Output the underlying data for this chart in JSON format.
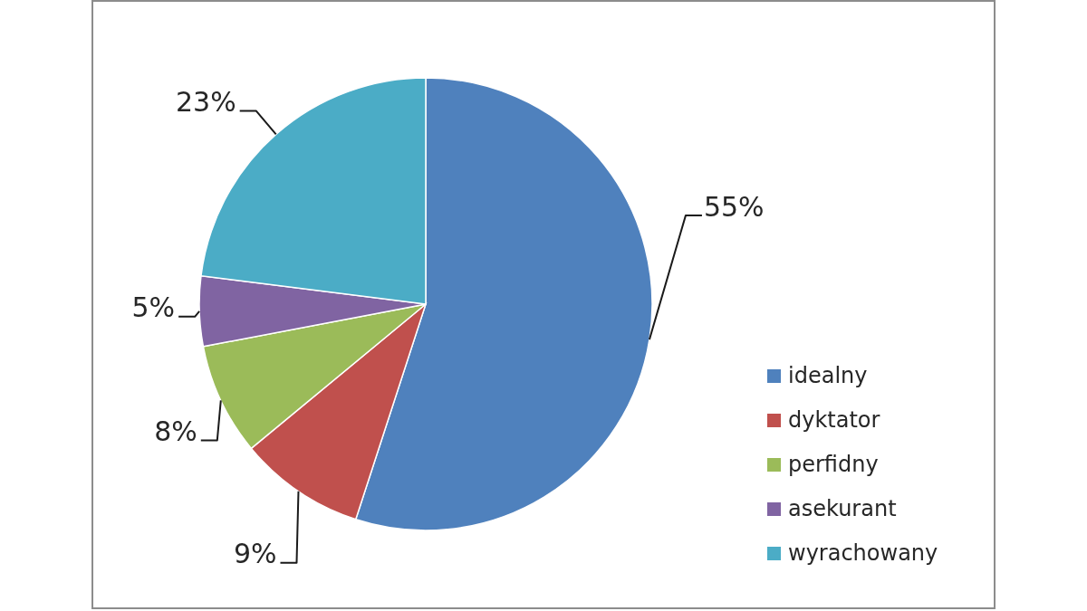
{
  "chart_data": {
    "type": "pie",
    "categories": [
      "idealny",
      "dyktator",
      "perfidny",
      "asekurant",
      "wyrachowany"
    ],
    "values": [
      55,
      9,
      8,
      5,
      23
    ],
    "colors": [
      "#4f81bd",
      "#c0504d",
      "#9bbb59",
      "#8064a2",
      "#4bacc6"
    ],
    "value_labels": [
      "55%",
      "9%",
      "8%",
      "5%",
      "23%"
    ],
    "legend": "right"
  }
}
